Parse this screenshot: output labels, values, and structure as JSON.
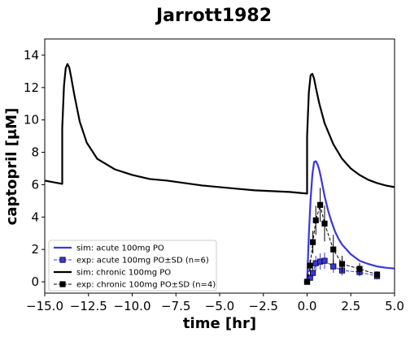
{
  "chart_data": {
    "type": "line",
    "title": "Jarrott1982",
    "xlabel": "time [hr]",
    "ylabel": "captopril [μM]",
    "xlim": [
      -15.0,
      5.0
    ],
    "ylim": [
      -0.7,
      15.0
    ],
    "xticks": [
      -15.0,
      -12.5,
      -10.0,
      -7.5,
      -5.0,
      -2.5,
      0.0,
      2.5,
      5.0
    ],
    "xtick_labels": [
      "−15.0",
      "−12.5",
      "−10.0",
      "−7.5",
      "−5.0",
      "−2.5",
      "0.0",
      "2.5",
      "5.0"
    ],
    "yticks": [
      0,
      2,
      4,
      6,
      8,
      10,
      12,
      14
    ],
    "ytick_labels": [
      "0",
      "2",
      "4",
      "6",
      "8",
      "10",
      "12",
      "14"
    ],
    "legend_position": "lower-left",
    "series": [
      {
        "name": "sim: acute 100mg PO",
        "kind": "line",
        "color": "#3a35e0",
        "x": [
          0.0,
          0.1,
          0.2,
          0.3,
          0.4,
          0.5,
          0.6,
          0.7,
          0.8,
          0.9,
          1.0,
          1.2,
          1.4,
          1.6,
          1.8,
          2.0,
          2.5,
          3.0,
          3.5,
          4.0,
          4.5,
          5.0
        ],
        "y": [
          0.0,
          2.9,
          5.1,
          6.6,
          7.4,
          7.45,
          7.25,
          6.9,
          6.4,
          5.85,
          5.3,
          4.4,
          3.7,
          3.1,
          2.65,
          2.3,
          1.7,
          1.3,
          1.1,
          0.95,
          0.87,
          0.82
        ]
      },
      {
        "name": "exp: acute 100mg PO±SD (n=6)",
        "kind": "errorbar",
        "color": "#3a35e0",
        "x": [
          0.0,
          0.17,
          0.33,
          0.5,
          0.75,
          1.0,
          1.5,
          2.0,
          3.0,
          4.0
        ],
        "y": [
          0.0,
          0.25,
          0.55,
          1.15,
          1.25,
          1.3,
          0.95,
          0.7,
          0.6,
          0.35
        ],
        "sd": [
          0.0,
          0.15,
          0.3,
          0.45,
          0.5,
          0.5,
          0.4,
          0.3,
          0.25,
          0.2
        ]
      },
      {
        "name": "sim: chronic 100mg PO",
        "kind": "line",
        "color": "#000000",
        "x": [
          -15.0,
          -14.5,
          -14.0,
          -14.0,
          -13.9,
          -13.8,
          -13.7,
          -13.6,
          -13.5,
          -13.3,
          -13.0,
          -12.6,
          -12.0,
          -11.0,
          -10.0,
          -9.0,
          -8.0,
          -7.0,
          -6.0,
          -5.0,
          -4.0,
          -3.0,
          -2.0,
          -1.0,
          0.0,
          0.0,
          0.1,
          0.2,
          0.3,
          0.4,
          0.5,
          0.7,
          1.0,
          1.5,
          2.0,
          2.5,
          3.0,
          3.5,
          4.0,
          4.5,
          5.0
        ],
        "y": [
          6.25,
          6.15,
          6.05,
          9.5,
          12.1,
          13.2,
          13.45,
          13.25,
          12.7,
          11.5,
          9.9,
          8.6,
          7.6,
          6.95,
          6.6,
          6.35,
          6.25,
          6.1,
          5.95,
          5.85,
          5.75,
          5.65,
          5.6,
          5.55,
          5.45,
          9.0,
          11.7,
          12.75,
          12.85,
          12.55,
          12.0,
          11.0,
          9.8,
          8.5,
          7.6,
          7.0,
          6.6,
          6.3,
          6.1,
          5.95,
          5.85
        ]
      },
      {
        "name": "exp: chronic 100mg PO±SD (n=4)",
        "kind": "errorbar",
        "color": "#000000",
        "x": [
          0.0,
          0.17,
          0.33,
          0.5,
          0.75,
          1.0,
          1.5,
          2.0,
          3.0,
          4.0
        ],
        "y": [
          0.0,
          1.0,
          2.45,
          3.8,
          4.75,
          3.6,
          2.0,
          1.1,
          0.8,
          0.45
        ],
        "sd": [
          0.0,
          0.35,
          0.7,
          0.9,
          1.05,
          1.1,
          0.9,
          0.5,
          0.35,
          0.2
        ]
      }
    ]
  }
}
